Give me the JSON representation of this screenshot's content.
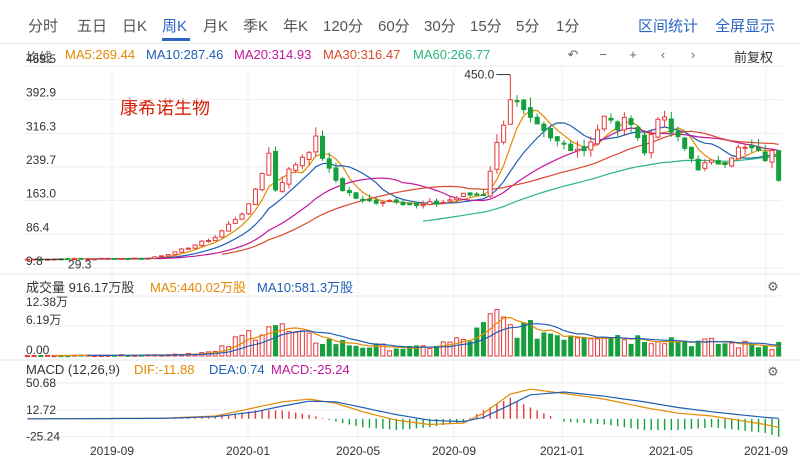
{
  "tabs": [
    {
      "label": "分时",
      "active": false
    },
    {
      "label": "五日",
      "active": false
    },
    {
      "label": "日K",
      "active": false
    },
    {
      "label": "周K",
      "active": true
    },
    {
      "label": "月K",
      "active": false
    },
    {
      "label": "季K",
      "active": false
    },
    {
      "label": "年K",
      "active": false
    },
    {
      "label": "120分",
      "active": false
    },
    {
      "label": "60分",
      "active": false
    },
    {
      "label": "30分",
      "active": false
    },
    {
      "label": "15分",
      "active": false
    },
    {
      "label": "5分",
      "active": false
    },
    {
      "label": "1分",
      "active": false
    }
  ],
  "actions": {
    "interval_stats": "区间统计",
    "fullscreen": "全屏显示"
  },
  "toolbar": {
    "restore": "前复权",
    "icons": [
      "undo-icon",
      "zoom-out-icon",
      "zoom-in-icon",
      "prev-icon",
      "next-icon"
    ]
  },
  "stock_name": "康希诺生物",
  "colors": {
    "up": "#e4393c",
    "down": "#15a03c",
    "ma5": "#e38a00",
    "ma10": "#1f5fb4",
    "ma20": "#c0179a",
    "ma30": "#d84a2e",
    "ma60": "#2db67c",
    "accent": "#2a64c5"
  },
  "ma_legend": {
    "title": "均线",
    "items": [
      {
        "label": "MA5:269.44",
        "key": "ma5"
      },
      {
        "label": "MA10:287.46",
        "key": "ma10"
      },
      {
        "label": "MA20:314.93",
        "key": "ma20"
      },
      {
        "label": "MA30:316.47",
        "key": "ma30"
      },
      {
        "label": "MA60:266.77",
        "key": "ma60"
      }
    ]
  },
  "vol_legend": {
    "items": [
      {
        "label": "成交量 916.17万股",
        "key": "text"
      },
      {
        "label": "MA5:440.02万股",
        "key": "ma5"
      },
      {
        "label": "MA10:581.3万股",
        "key": "ma10"
      }
    ]
  },
  "macd_legend": {
    "items": [
      {
        "label": "MACD (12,26,9)",
        "key": "text"
      },
      {
        "label": "DIF:-11.88",
        "key": "ma5"
      },
      {
        "label": "DEA:0.74",
        "key": "ma10"
      },
      {
        "label": "MACD:-25.24",
        "key": "ma20"
      }
    ]
  },
  "chart_data": {
    "type": "candlestick",
    "price_axis": {
      "ticks": [
        "469.5",
        "392.9",
        "316.3",
        "239.7",
        "163.0",
        "86.4",
        "9.8"
      ],
      "range": [
        9.8,
        469.5
      ]
    },
    "annotations": {
      "high": "450.0",
      "low": "29.3"
    },
    "volume_axis": {
      "ticks": [
        "12.38万",
        "6.19万",
        "0.00"
      ]
    },
    "macd_axis": {
      "ticks": [
        "50.68",
        "12.72",
        "-25.24"
      ]
    },
    "x_labels": [
      "2019-09",
      "2020-01",
      "2020-05",
      "2020-09",
      "2021-01",
      "2021-05",
      "2021-09"
    ],
    "anchors": {
      "close": [
        [
          0,
          30
        ],
        [
          18,
          32
        ],
        [
          22,
          45
        ],
        [
          28,
          80
        ],
        [
          33,
          150
        ],
        [
          36,
          270
        ],
        [
          37,
          190
        ],
        [
          39,
          230
        ],
        [
          43,
          300
        ],
        [
          45,
          230
        ],
        [
          47,
          190
        ],
        [
          50,
          160
        ],
        [
          55,
          165
        ],
        [
          58,
          150
        ],
        [
          62,
          160
        ],
        [
          65,
          175
        ],
        [
          68,
          180
        ],
        [
          70,
          290
        ],
        [
          72,
          400
        ],
        [
          75,
          340
        ],
        [
          78,
          300
        ],
        [
          83,
          280
        ],
        [
          86,
          350
        ],
        [
          88,
          330
        ],
        [
          90,
          350
        ],
        [
          92,
          270
        ],
        [
          94,
          360
        ],
        [
          97,
          300
        ],
        [
          100,
          240
        ],
        [
          104,
          255
        ],
        [
          106,
          280
        ],
        [
          108,
          280
        ],
        [
          110,
          260
        ],
        [
          111,
          270
        ],
        [
          112,
          215
        ]
      ],
      "volume": [
        [
          0,
          0.08
        ],
        [
          20,
          0.25
        ],
        [
          28,
          0.8
        ],
        [
          33,
          4.5
        ],
        [
          36,
          7
        ],
        [
          40,
          4
        ],
        [
          45,
          3
        ],
        [
          50,
          2
        ],
        [
          58,
          1.5
        ],
        [
          62,
          2.5
        ],
        [
          66,
          3.5
        ],
        [
          70,
          8
        ],
        [
          72,
          6
        ],
        [
          76,
          5
        ],
        [
          80,
          4.5
        ],
        [
          86,
          5
        ],
        [
          90,
          3.5
        ],
        [
          94,
          4
        ],
        [
          98,
          3
        ],
        [
          104,
          2.5
        ],
        [
          108,
          2.2
        ],
        [
          111,
          2
        ],
        [
          112,
          4
        ]
      ],
      "dif": [
        [
          0,
          0
        ],
        [
          20,
          0.8
        ],
        [
          28,
          4
        ],
        [
          34,
          16
        ],
        [
          38,
          24
        ],
        [
          42,
          28
        ],
        [
          46,
          22
        ],
        [
          50,
          10
        ],
        [
          55,
          -2
        ],
        [
          60,
          -8
        ],
        [
          65,
          -6
        ],
        [
          68,
          8
        ],
        [
          72,
          35
        ],
        [
          75,
          42
        ],
        [
          80,
          36
        ],
        [
          86,
          28
        ],
        [
          92,
          16
        ],
        [
          97,
          8
        ],
        [
          102,
          4
        ],
        [
          106,
          -2
        ],
        [
          110,
          -8
        ],
        [
          112,
          -12
        ]
      ],
      "dea": [
        [
          0,
          0
        ],
        [
          20,
          0.6
        ],
        [
          28,
          3
        ],
        [
          34,
          10
        ],
        [
          38,
          18
        ],
        [
          42,
          25
        ],
        [
          46,
          24
        ],
        [
          50,
          16
        ],
        [
          55,
          6
        ],
        [
          60,
          -2
        ],
        [
          65,
          -4
        ],
        [
          68,
          2
        ],
        [
          72,
          20
        ],
        [
          75,
          34
        ],
        [
          80,
          38
        ],
        [
          86,
          32
        ],
        [
          92,
          24
        ],
        [
          97,
          16
        ],
        [
          102,
          10
        ],
        [
          106,
          6
        ],
        [
          110,
          2
        ],
        [
          112,
          0.74
        ]
      ]
    },
    "macd_last": -25.24
  }
}
